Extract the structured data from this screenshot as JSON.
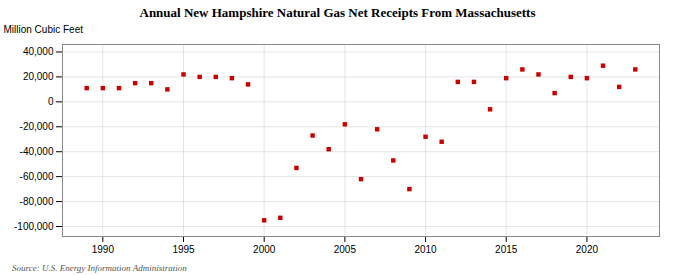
{
  "chart_data": {
    "type": "scatter",
    "title": "Annual New Hampshire Natural Gas Net Receipts From Massachusetts",
    "ylabel": "Million Cubic Feet",
    "source": "Source: U.S. Energy Information Administration",
    "x": [
      1989,
      1990,
      1991,
      1992,
      1993,
      1994,
      1995,
      1996,
      1997,
      1998,
      1999,
      2000,
      2001,
      2002,
      2003,
      2004,
      2005,
      2006,
      2007,
      2008,
      2009,
      2010,
      2011,
      2012,
      2013,
      2014,
      2015,
      2016,
      2017,
      2018,
      2019,
      2020,
      2021,
      2022,
      2023
    ],
    "values": [
      11000,
      11000,
      11000,
      15000,
      15000,
      10000,
      22000,
      20000,
      20000,
      19000,
      14000,
      -95000,
      -93000,
      -53000,
      -27000,
      -38000,
      -18000,
      -62000,
      -22000,
      -47000,
      -70000,
      -28000,
      -32000,
      16000,
      16000,
      -6000,
      19000,
      26000,
      22000,
      7000,
      20000,
      19000,
      29000,
      12000,
      26000
    ],
    "color": "#cc0000",
    "marker": "square",
    "xlim": [
      1987.5,
      2024.5
    ],
    "xticks": [
      1990,
      1995,
      2000,
      2005,
      2010,
      2015,
      2020
    ],
    "ylim": [
      -108000,
      46000
    ],
    "yticks": [
      {
        "value": -100000,
        "label": "-100,000"
      },
      {
        "value": -80000,
        "label": "-80,000"
      },
      {
        "value": -60000,
        "label": "-60,000"
      },
      {
        "value": -40000,
        "label": "-40,000"
      },
      {
        "value": -20000,
        "label": "-20,000"
      },
      0,
      {
        "value": 20000,
        "label": "20,000"
      },
      {
        "value": 40000,
        "label": "40,000"
      }
    ],
    "grid": true
  }
}
